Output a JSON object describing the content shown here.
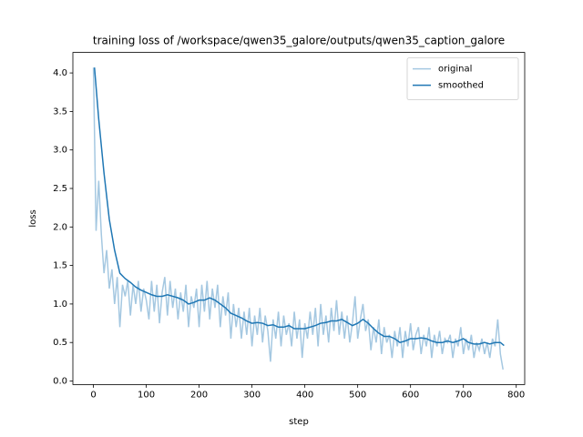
{
  "chart_data": {
    "type": "line",
    "title": "training loss of /workspace/qwen35_galore/outputs/qwen35_caption_galore",
    "x_label": "step",
    "y_label": "loss",
    "xlim": [
      -38.9,
      816
    ],
    "ylim": [
      -0.046,
      4.266
    ],
    "xticks": [
      0,
      100,
      200,
      300,
      400,
      500,
      600,
      700,
      800
    ],
    "yticks": [
      {
        "value": 0,
        "label": "0.0"
      },
      {
        "value": 0.5,
        "label": "0.5"
      },
      {
        "value": 1,
        "label": "1.0"
      },
      {
        "value": 1.5,
        "label": "1.5"
      },
      {
        "value": 2,
        "label": "2.0"
      },
      {
        "value": 2.5,
        "label": "2.5"
      },
      {
        "value": 3,
        "label": "3.0"
      },
      {
        "value": 3.5,
        "label": "3.5"
      },
      {
        "value": 4,
        "label": "4.0"
      }
    ],
    "legend": "upper right",
    "series": [
      {
        "name": "original",
        "color": "#a5c8e1",
        "x": [
          0,
          5,
          10,
          15,
          20,
          25,
          30,
          35,
          40,
          45,
          50,
          55,
          60,
          65,
          70,
          75,
          80,
          85,
          90,
          95,
          100,
          105,
          110,
          115,
          120,
          125,
          130,
          135,
          140,
          145,
          150,
          155,
          160,
          165,
          170,
          175,
          180,
          185,
          190,
          195,
          200,
          205,
          210,
          215,
          220,
          225,
          230,
          235,
          240,
          245,
          250,
          255,
          260,
          265,
          270,
          275,
          280,
          285,
          290,
          295,
          300,
          305,
          310,
          315,
          320,
          325,
          330,
          335,
          340,
          345,
          350,
          355,
          360,
          365,
          370,
          375,
          380,
          385,
          390,
          395,
          400,
          405,
          410,
          415,
          420,
          425,
          430,
          435,
          440,
          445,
          450,
          455,
          460,
          465,
          470,
          475,
          480,
          485,
          490,
          495,
          500,
          505,
          510,
          515,
          520,
          525,
          530,
          535,
          540,
          545,
          550,
          555,
          560,
          565,
          570,
          575,
          580,
          585,
          590,
          595,
          600,
          605,
          610,
          615,
          620,
          625,
          630,
          635,
          640,
          645,
          650,
          655,
          660,
          665,
          670,
          675,
          680,
          685,
          690,
          695,
          700,
          705,
          710,
          715,
          720,
          725,
          730,
          735,
          740,
          745,
          750,
          755,
          760,
          765,
          770,
          775
        ],
        "values": [
          4.07,
          1.95,
          2.6,
          1.9,
          1.4,
          1.7,
          1.2,
          1.45,
          1.0,
          1.35,
          0.7,
          1.25,
          1.1,
          1.3,
          0.85,
          1.25,
          1.0,
          1.3,
          0.9,
          1.2,
          1.05,
          0.8,
          1.3,
          0.9,
          1.25,
          0.75,
          1.15,
          1.35,
          0.85,
          1.3,
          0.95,
          1.2,
          0.8,
          1.15,
          0.9,
          1.25,
          0.7,
          1.1,
          0.95,
          1.2,
          0.7,
          1.25,
          0.9,
          1.3,
          0.8,
          1.2,
          0.95,
          1.25,
          0.7,
          1.1,
          0.85,
          1.15,
          0.55,
          1.0,
          0.7,
          0.95,
          0.55,
          0.9,
          0.6,
          0.95,
          0.45,
          0.85,
          0.6,
          0.95,
          0.5,
          0.85,
          0.65,
          0.25,
          0.8,
          0.55,
          0.9,
          0.45,
          0.85,
          0.6,
          0.75,
          0.45,
          0.9,
          0.55,
          0.8,
          0.3,
          0.75,
          0.55,
          0.9,
          0.6,
          0.95,
          0.45,
          1.0,
          0.6,
          0.85,
          0.5,
          0.95,
          0.65,
          1.05,
          0.6,
          0.9,
          0.55,
          0.85,
          0.5,
          0.75,
          1.1,
          0.55,
          0.8,
          1.0,
          0.65,
          0.8,
          0.4,
          0.7,
          0.5,
          0.8,
          0.35,
          0.7,
          0.5,
          0.6,
          0.3,
          0.65,
          0.45,
          0.7,
          0.3,
          0.65,
          0.45,
          0.75,
          0.4,
          0.6,
          0.7,
          0.35,
          0.6,
          0.45,
          0.7,
          0.3,
          0.6,
          0.45,
          0.65,
          0.35,
          0.55,
          0.5,
          0.6,
          0.3,
          0.55,
          0.45,
          0.7,
          0.35,
          0.55,
          0.4,
          0.6,
          0.3,
          0.5,
          0.4,
          0.55,
          0.35,
          0.5,
          0.3,
          0.55,
          0.45,
          0.8,
          0.35,
          0.15
        ]
      },
      {
        "name": "smoothed",
        "color": "#1f77b4",
        "x": [
          2,
          10,
          20,
          30,
          40,
          50,
          60,
          70,
          80,
          90,
          100,
          110,
          120,
          130,
          140,
          150,
          160,
          170,
          180,
          190,
          200,
          210,
          220,
          230,
          240,
          250,
          260,
          270,
          280,
          290,
          300,
          310,
          320,
          330,
          340,
          350,
          360,
          370,
          380,
          390,
          400,
          410,
          420,
          430,
          440,
          450,
          460,
          470,
          480,
          490,
          500,
          510,
          520,
          530,
          540,
          550,
          560,
          570,
          580,
          590,
          600,
          610,
          620,
          630,
          640,
          650,
          660,
          670,
          680,
          690,
          700,
          710,
          720,
          730,
          740,
          750,
          760,
          770,
          777
        ],
        "values": [
          4.07,
          3.4,
          2.7,
          2.1,
          1.7,
          1.4,
          1.33,
          1.28,
          1.22,
          1.18,
          1.15,
          1.12,
          1.1,
          1.1,
          1.12,
          1.1,
          1.08,
          1.05,
          1.0,
          1.02,
          1.05,
          1.05,
          1.08,
          1.05,
          1.0,
          0.95,
          0.88,
          0.85,
          0.82,
          0.78,
          0.75,
          0.76,
          0.75,
          0.72,
          0.73,
          0.7,
          0.7,
          0.72,
          0.68,
          0.68,
          0.68,
          0.7,
          0.72,
          0.75,
          0.76,
          0.78,
          0.78,
          0.8,
          0.76,
          0.72,
          0.75,
          0.8,
          0.75,
          0.68,
          0.62,
          0.58,
          0.58,
          0.55,
          0.5,
          0.52,
          0.55,
          0.55,
          0.56,
          0.55,
          0.52,
          0.5,
          0.5,
          0.52,
          0.5,
          0.52,
          0.55,
          0.5,
          0.48,
          0.48,
          0.5,
          0.48,
          0.5,
          0.5,
          0.46
        ]
      }
    ]
  }
}
